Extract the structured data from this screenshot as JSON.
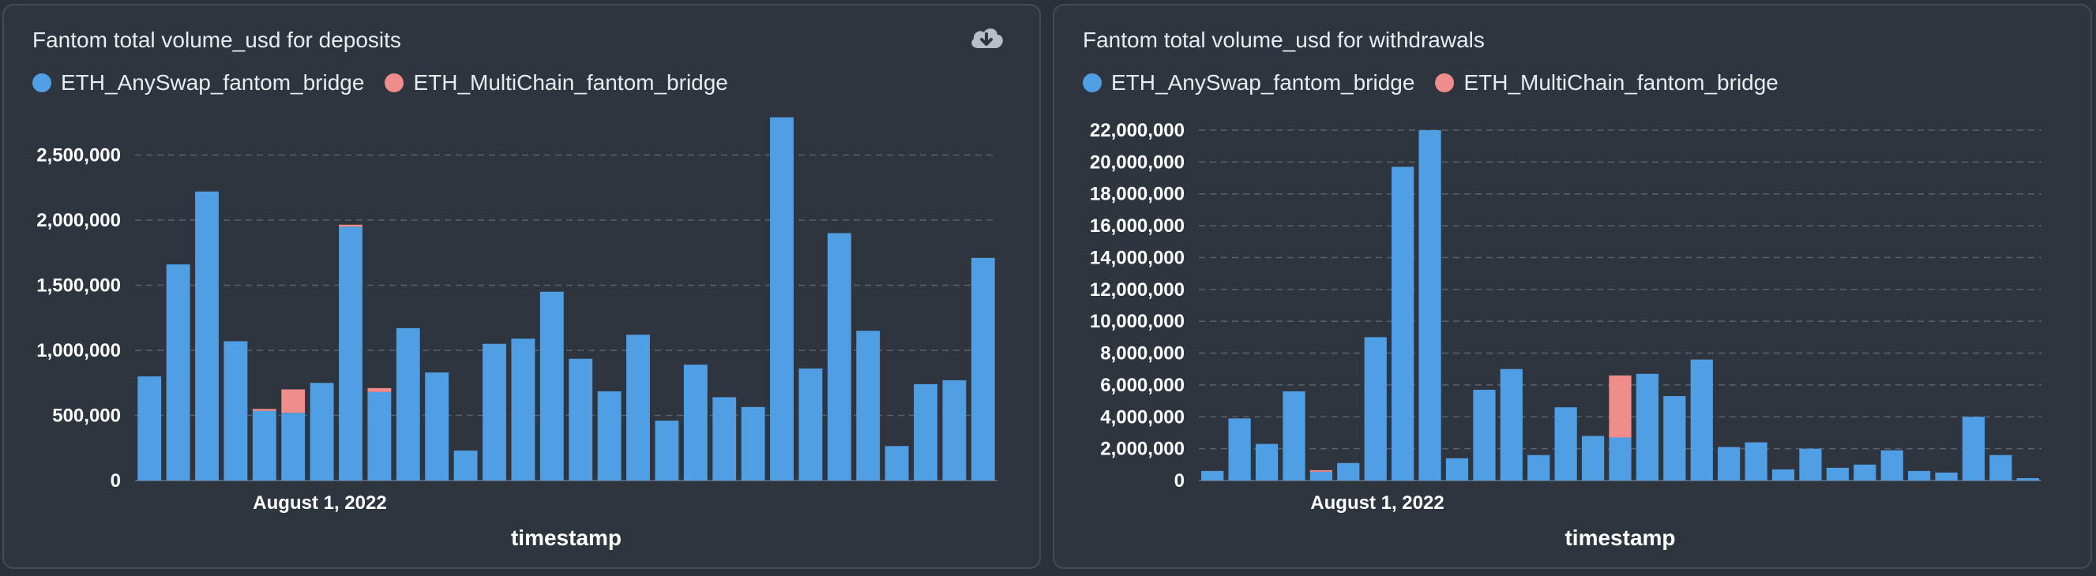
{
  "colors": {
    "series_a": "#509ee3",
    "series_b": "#ef8c8c",
    "grid": "#5a6169",
    "background": "#2f353f"
  },
  "icons": {
    "download": "cloud-download-icon"
  },
  "chart_data": [
    {
      "type": "bar",
      "stacked": true,
      "title": "Fantom total volume_usd for deposits",
      "xlabel": "timestamp",
      "ylabel": "",
      "x_tick_labels": [
        "August 1, 2022"
      ],
      "y_ticks": [
        0,
        500000,
        1000000,
        1500000,
        2000000,
        2500000
      ],
      "y_tick_labels": [
        "0",
        "500,000",
        "1,000,000",
        "1,500,000",
        "2,000,000",
        "2,500,000"
      ],
      "ylim": [
        0,
        2800000
      ],
      "legend": [
        "ETH_AnySwap_fantom_bridge",
        "ETH_MultiChain_fantom_bridge"
      ],
      "series": [
        {
          "name": "ETH_AnySwap_fantom_bridge",
          "values": [
            800000,
            1660000,
            2220000,
            1070000,
            535000,
            520000,
            750000,
            1950000,
            680000,
            1170000,
            830000,
            230000,
            1050000,
            1090000,
            1450000,
            935000,
            685000,
            1120000,
            460000,
            890000,
            640000,
            565000,
            2790000,
            860000,
            1900000,
            1150000,
            265000,
            740000,
            770000,
            1710000
          ]
        },
        {
          "name": "ETH_MultiChain_fantom_bridge",
          "values": [
            0,
            0,
            0,
            0,
            15000,
            180000,
            0,
            15000,
            30000,
            0,
            0,
            0,
            0,
            0,
            0,
            0,
            0,
            0,
            0,
            0,
            0,
            0,
            0,
            0,
            0,
            0,
            0,
            0,
            0,
            0
          ]
        }
      ]
    },
    {
      "type": "bar",
      "stacked": true,
      "title": "Fantom total volume_usd for withdrawals",
      "xlabel": "timestamp",
      "ylabel": "",
      "x_tick_labels": [
        "August 1, 2022"
      ],
      "y_ticks": [
        0,
        2000000,
        4000000,
        6000000,
        8000000,
        10000000,
        12000000,
        14000000,
        16000000,
        18000000,
        20000000,
        22000000
      ],
      "y_tick_labels": [
        "0",
        "2,000,000",
        "4,000,000",
        "6,000,000",
        "8,000,000",
        "10,000,000",
        "12,000,000",
        "14,000,000",
        "16,000,000",
        "18,000,000",
        "20,000,000",
        "22,000,000"
      ],
      "ylim": [
        0,
        22000000
      ],
      "legend": [
        "ETH_AnySwap_fantom_bridge",
        "ETH_MultiChain_fantom_bridge"
      ],
      "series": [
        {
          "name": "ETH_AnySwap_fantom_bridge",
          "values": [
            600000,
            3900000,
            2300000,
            5600000,
            550000,
            1100000,
            9000000,
            19700000,
            22000000,
            1400000,
            5700000,
            7000000,
            1600000,
            4600000,
            2800000,
            2700000,
            6700000,
            5300000,
            7600000,
            2100000,
            2400000,
            700000,
            2000000,
            800000,
            1000000,
            1900000,
            600000,
            500000,
            4000000,
            1600000,
            150000
          ]
        },
        {
          "name": "ETH_MultiChain_fantom_bridge",
          "values": [
            0,
            0,
            0,
            0,
            100000,
            0,
            0,
            0,
            0,
            0,
            0,
            0,
            0,
            0,
            0,
            3900000,
            0,
            0,
            0,
            0,
            0,
            0,
            0,
            0,
            0,
            0,
            0,
            0,
            0,
            0,
            0
          ]
        }
      ]
    }
  ]
}
